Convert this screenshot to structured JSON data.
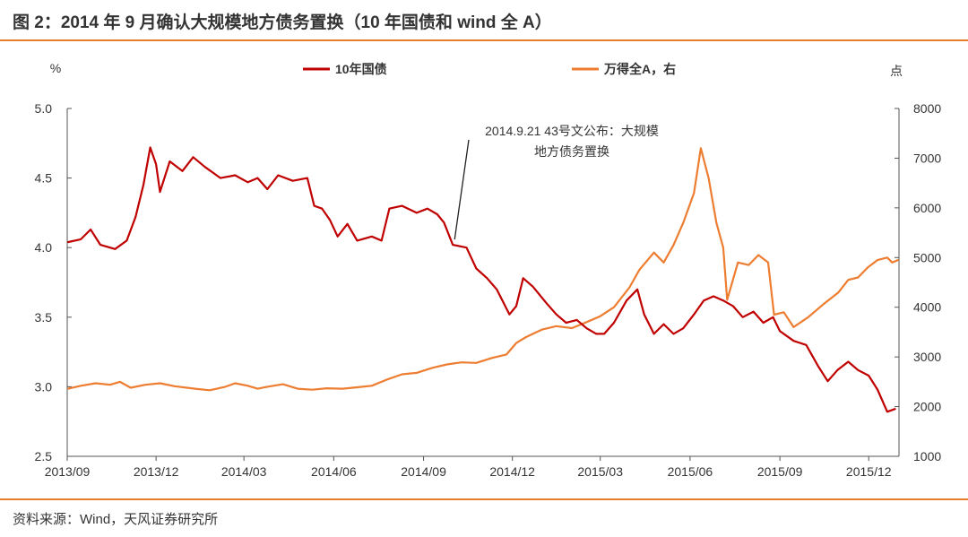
{
  "header": {
    "title": "图 2：2014 年 9 月确认大规模地方债务置换（10 年国债和 wind 全 A）"
  },
  "footer": {
    "source": "资料来源：Wind，天风证券研究所"
  },
  "colors": {
    "accent": "#e87d2b",
    "series_bond": "#c00000",
    "series_index": "#ed7d31"
  },
  "chart_data": {
    "type": "line",
    "left_unit": "%",
    "right_unit": "点",
    "ylim_left": [
      2.5,
      5.0
    ],
    "ylim_right": [
      1000,
      8000
    ],
    "yticks_left": [
      "5.0",
      "4.5",
      "4.0",
      "3.5",
      "3.0",
      "2.5"
    ],
    "yticks_right": [
      "8000",
      "7000",
      "6000",
      "5000",
      "4000",
      "3000",
      "2000",
      "1000"
    ],
    "xticks": [
      "2013/09",
      "2013/12",
      "2014/03",
      "2014/06",
      "2014/09",
      "2014/12",
      "2015/03",
      "2015/06",
      "2015/09",
      "2015/12"
    ],
    "grid": false,
    "legend_position": "top",
    "annotation": {
      "lines": [
        "2014.9.21 43号文公布：大规模",
        "地方债务置换"
      ],
      "points_to": [
        "2014/10",
        4.02
      ]
    },
    "series": [
      {
        "name": "10年国债",
        "axis": "left",
        "points": [
          [
            "2013/09/02",
            4.04
          ],
          [
            "2013/09/15",
            4.06
          ],
          [
            "2013/09/25",
            4.13
          ],
          [
            "2013/10/05",
            4.02
          ],
          [
            "2013/10/20",
            3.99
          ],
          [
            "2013/11/01",
            4.05
          ],
          [
            "2013/11/10",
            4.22
          ],
          [
            "2013/11/18",
            4.45
          ],
          [
            "2013/11/25",
            4.72
          ],
          [
            "2013/12/01",
            4.6
          ],
          [
            "2013/12/05",
            4.4
          ],
          [
            "2013/12/15",
            4.62
          ],
          [
            "2013/12/28",
            4.55
          ],
          [
            "2014/01/08",
            4.65
          ],
          [
            "2014/01/20",
            4.58
          ],
          [
            "2014/02/05",
            4.5
          ],
          [
            "2014/02/20",
            4.52
          ],
          [
            "2014/03/05",
            4.47
          ],
          [
            "2014/03/15",
            4.5
          ],
          [
            "2014/03/25",
            4.42
          ],
          [
            "2014/04/05",
            4.52
          ],
          [
            "2014/04/20",
            4.48
          ],
          [
            "2014/05/05",
            4.5
          ],
          [
            "2014/05/12",
            4.3
          ],
          [
            "2014/05/20",
            4.28
          ],
          [
            "2014/05/28",
            4.2
          ],
          [
            "2014/06/05",
            4.08
          ],
          [
            "2014/06/15",
            4.17
          ],
          [
            "2014/06/25",
            4.05
          ],
          [
            "2014/07/10",
            4.08
          ],
          [
            "2014/07/20",
            4.05
          ],
          [
            "2014/07/28",
            4.28
          ],
          [
            "2014/08/10",
            4.3
          ],
          [
            "2014/08/25",
            4.25
          ],
          [
            "2014/09/05",
            4.28
          ],
          [
            "2014/09/15",
            4.24
          ],
          [
            "2014/09/22",
            4.18
          ],
          [
            "2014/10/01",
            4.02
          ],
          [
            "2014/10/15",
            4.0
          ],
          [
            "2014/10/25",
            3.85
          ],
          [
            "2014/11/05",
            3.78
          ],
          [
            "2014/11/15",
            3.7
          ],
          [
            "2014/11/28",
            3.52
          ],
          [
            "2014/12/05",
            3.58
          ],
          [
            "2014/12/12",
            3.78
          ],
          [
            "2014/12/22",
            3.72
          ],
          [
            "2015/01/05",
            3.6
          ],
          [
            "2015/01/15",
            3.52
          ],
          [
            "2015/01/25",
            3.46
          ],
          [
            "2015/02/05",
            3.48
          ],
          [
            "2015/02/15",
            3.42
          ],
          [
            "2015/02/25",
            3.38
          ],
          [
            "2015/03/05",
            3.38
          ],
          [
            "2015/03/15",
            3.46
          ],
          [
            "2015/03/28",
            3.62
          ],
          [
            "2015/04/08",
            3.7
          ],
          [
            "2015/04/15",
            3.52
          ],
          [
            "2015/04/25",
            3.38
          ],
          [
            "2015/05/05",
            3.45
          ],
          [
            "2015/05/15",
            3.38
          ],
          [
            "2015/05/25",
            3.42
          ],
          [
            "2015/06/05",
            3.52
          ],
          [
            "2015/06/15",
            3.62
          ],
          [
            "2015/06/25",
            3.65
          ],
          [
            "2015/07/05",
            3.62
          ],
          [
            "2015/07/15",
            3.58
          ],
          [
            "2015/07/25",
            3.5
          ],
          [
            "2015/08/05",
            3.54
          ],
          [
            "2015/08/15",
            3.46
          ],
          [
            "2015/08/25",
            3.5
          ],
          [
            "2015/09/01",
            3.4
          ],
          [
            "2015/09/15",
            3.33
          ],
          [
            "2015/09/28",
            3.3
          ],
          [
            "2015/10/10",
            3.15
          ],
          [
            "2015/10/20",
            3.04
          ],
          [
            "2015/10/30",
            3.12
          ],
          [
            "2015/11/10",
            3.18
          ],
          [
            "2015/11/20",
            3.12
          ],
          [
            "2015/12/01",
            3.08
          ],
          [
            "2015/12/10",
            2.98
          ],
          [
            "2015/12/20",
            2.82
          ],
          [
            "2015/12/28",
            2.84
          ]
        ]
      },
      {
        "name": "万得全A，右",
        "axis": "right",
        "points": [
          [
            "2013/09/02",
            2360
          ],
          [
            "2013/09/15",
            2420
          ],
          [
            "2013/09/30",
            2470
          ],
          [
            "2013/10/15",
            2440
          ],
          [
            "2013/10/25",
            2500
          ],
          [
            "2013/11/05",
            2380
          ],
          [
            "2013/11/20",
            2440
          ],
          [
            "2013/12/05",
            2470
          ],
          [
            "2013/12/20",
            2410
          ],
          [
            "2014/01/10",
            2360
          ],
          [
            "2014/01/25",
            2330
          ],
          [
            "2014/02/10",
            2400
          ],
          [
            "2014/02/20",
            2470
          ],
          [
            "2014/03/05",
            2420
          ],
          [
            "2014/03/15",
            2360
          ],
          [
            "2014/03/25",
            2400
          ],
          [
            "2014/04/10",
            2450
          ],
          [
            "2014/04/25",
            2360
          ],
          [
            "2014/05/10",
            2340
          ],
          [
            "2014/05/25",
            2370
          ],
          [
            "2014/06/10",
            2360
          ],
          [
            "2014/06/25",
            2390
          ],
          [
            "2014/07/10",
            2420
          ],
          [
            "2014/07/25",
            2540
          ],
          [
            "2014/08/10",
            2650
          ],
          [
            "2014/08/25",
            2680
          ],
          [
            "2014/09/10",
            2780
          ],
          [
            "2014/09/25",
            2850
          ],
          [
            "2014/10/10",
            2890
          ],
          [
            "2014/10/25",
            2880
          ],
          [
            "2014/11/10",
            2980
          ],
          [
            "2014/11/25",
            3050
          ],
          [
            "2014/12/05",
            3280
          ],
          [
            "2014/12/15",
            3400
          ],
          [
            "2014/12/31",
            3550
          ],
          [
            "2015/01/15",
            3620
          ],
          [
            "2015/01/31",
            3580
          ],
          [
            "2015/02/15",
            3700
          ],
          [
            "2015/03/01",
            3820
          ],
          [
            "2015/03/15",
            4000
          ],
          [
            "2015/03/31",
            4400
          ],
          [
            "2015/04/10",
            4750
          ],
          [
            "2015/04/25",
            5100
          ],
          [
            "2015/05/05",
            4900
          ],
          [
            "2015/05/15",
            5250
          ],
          [
            "2015/05/25",
            5700
          ],
          [
            "2015/06/05",
            6300
          ],
          [
            "2015/06/12",
            7200
          ],
          [
            "2015/06/20",
            6600
          ],
          [
            "2015/06/28",
            5700
          ],
          [
            "2015/07/05",
            5200
          ],
          [
            "2015/07/09",
            4150
          ],
          [
            "2015/07/20",
            4900
          ],
          [
            "2015/07/31",
            4850
          ],
          [
            "2015/08/10",
            5050
          ],
          [
            "2015/08/20",
            4900
          ],
          [
            "2015/08/26",
            3850
          ],
          [
            "2015/09/05",
            3900
          ],
          [
            "2015/09/15",
            3600
          ],
          [
            "2015/09/30",
            3800
          ],
          [
            "2015/10/15",
            4050
          ],
          [
            "2015/10/31",
            4300
          ],
          [
            "2015/11/10",
            4550
          ],
          [
            "2015/11/20",
            4600
          ],
          [
            "2015/11/30",
            4800
          ],
          [
            "2015/12/10",
            4950
          ],
          [
            "2015/12/20",
            5000
          ],
          [
            "2015/12/25",
            4900
          ],
          [
            "2015/12/31",
            4950
          ]
        ]
      }
    ]
  }
}
